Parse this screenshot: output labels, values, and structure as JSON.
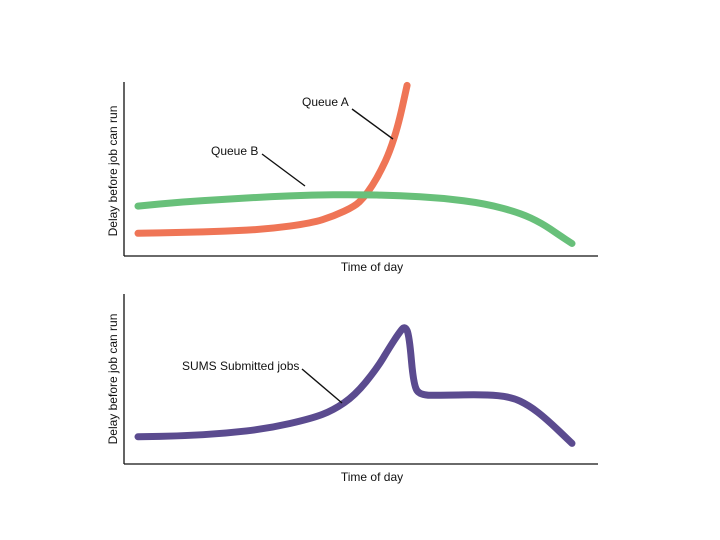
{
  "chart_data": [
    {
      "type": "line",
      "xlabel": "Time of day",
      "ylabel": "Delay before job can run",
      "ylim": [
        0,
        100
      ],
      "xlim": [
        0,
        100
      ],
      "grid": false,
      "annotations": [
        "Queue A",
        "Queue B"
      ],
      "series": [
        {
          "name": "Queue A",
          "color": "#ef7556",
          "x": [
            0,
            10,
            20,
            30,
            40,
            45,
            50,
            52,
            54,
            56,
            58,
            60,
            62
          ],
          "y": [
            11,
            11.5,
            12.2,
            13.5,
            17,
            21,
            27,
            32,
            39,
            48,
            59,
            75,
            98
          ]
        },
        {
          "name": "Queue B",
          "color": "#68c07a",
          "x": [
            0,
            10,
            20,
            30,
            40,
            50,
            60,
            70,
            80,
            88,
            93,
            97,
            100
          ],
          "y": [
            27,
            29.5,
            31,
            32.5,
            33.5,
            33.8,
            33.2,
            31.8,
            28.5,
            23,
            17,
            10,
            5
          ]
        }
      ]
    },
    {
      "type": "line",
      "xlabel": "Time of day",
      "ylabel": "Delay before job can run",
      "ylim": [
        0,
        100
      ],
      "xlim": [
        0,
        100
      ],
      "grid": false,
      "annotations": [
        "SUMS Submitted jobs"
      ],
      "series": [
        {
          "name": "SUMS Submitted jobs",
          "color": "#5b4b8f",
          "x": [
            0,
            10,
            20,
            30,
            40,
            45,
            50,
            55,
            58,
            60,
            61.5,
            62.5,
            63.5,
            65,
            70,
            80,
            86,
            90,
            94,
            100
          ],
          "y": [
            14,
            14.5,
            16,
            19,
            25,
            30,
            39,
            55,
            68,
            76,
            81,
            75,
            45,
            39,
            39,
            39.5,
            38,
            33,
            25,
            10
          ]
        }
      ]
    }
  ]
}
